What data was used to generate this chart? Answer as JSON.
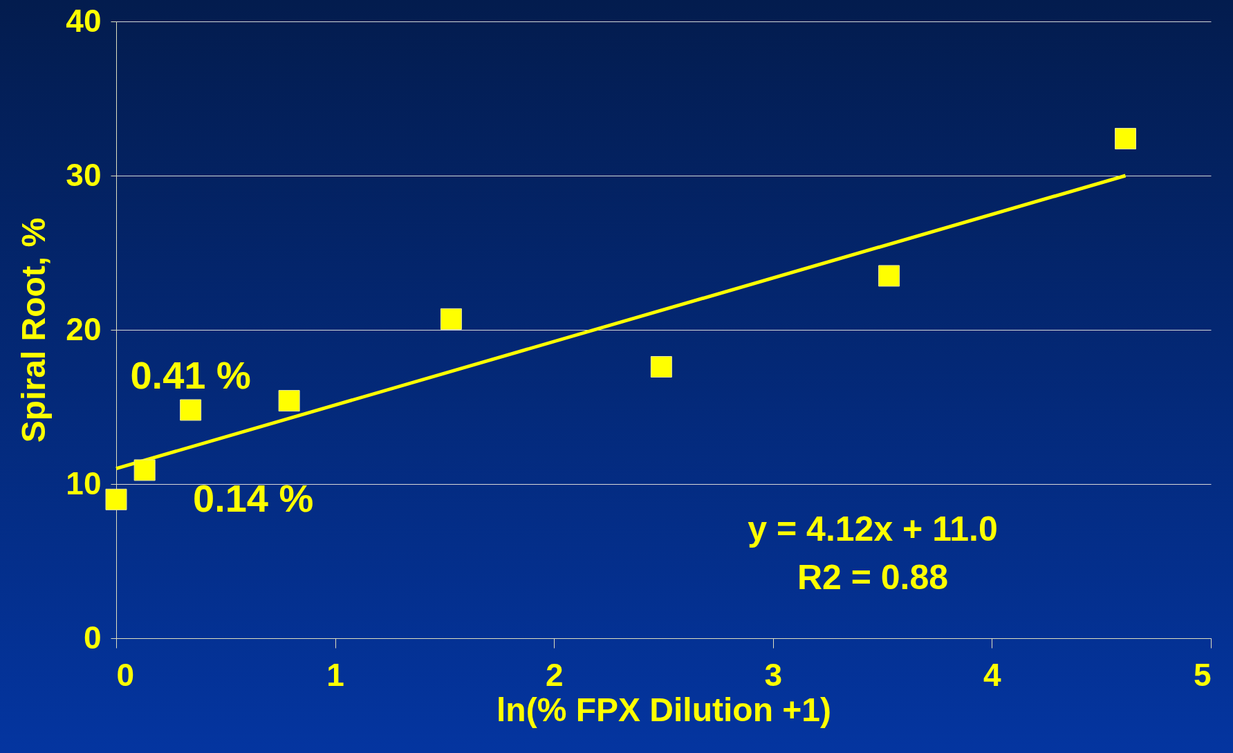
{
  "chart_data": {
    "type": "scatter",
    "xlabel": "ln(% FPX Dilution +1)",
    "ylabel": "Spiral Root, %",
    "xlim": [
      0,
      5
    ],
    "xticks": [
      0,
      1,
      2,
      3,
      4,
      5
    ],
    "ylim": [
      0,
      40
    ],
    "yticks": [
      0,
      10,
      20,
      30,
      40
    ],
    "grid": "y",
    "series": [
      {
        "color": "#ffff00",
        "marker": "square",
        "x": [
          0,
          0.13,
          0.34,
          0.79,
          1.53,
          2.49,
          3.53,
          4.61
        ],
        "values": [
          9.0,
          10.9,
          14.8,
          15.4,
          20.7,
          17.6,
          23.5,
          32.4
        ]
      },
      {
        "type": "line",
        "color": "#ffff00",
        "x": [
          0,
          4.61
        ],
        "values": [
          11.0,
          30.0
        ]
      }
    ],
    "annotations": [
      {
        "text": "0.41 %",
        "x": 0.34,
        "y": 14.8
      },
      {
        "text": "0.14 %",
        "x": 0.13,
        "y": 10.9
      },
      "y = 4.12x + 11.0",
      "R2 = 0.88"
    ]
  }
}
